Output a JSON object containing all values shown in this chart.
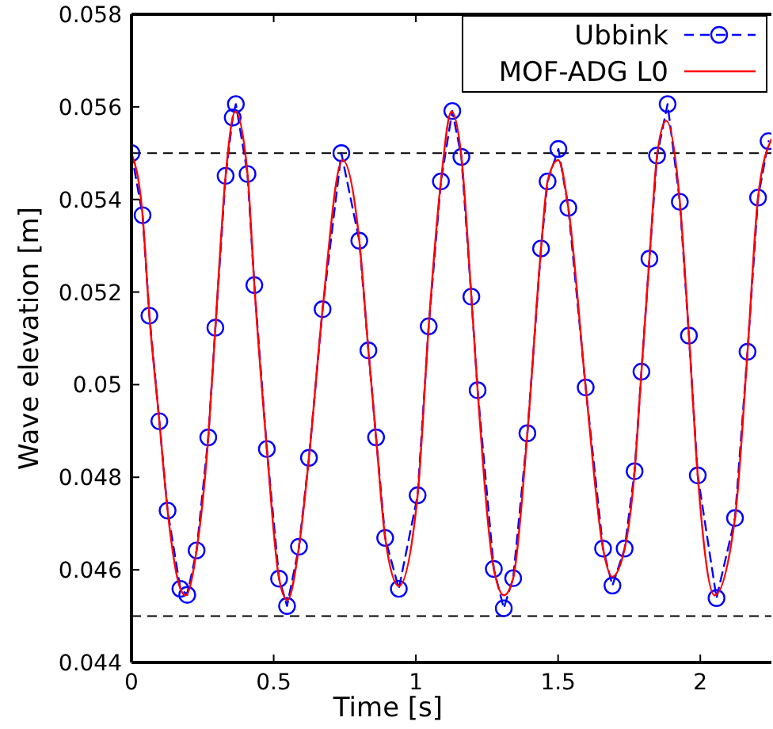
{
  "chart_data": {
    "type": "line",
    "xlabel": "Time [s]",
    "ylabel": "Wave elevation [m]",
    "xlim": [
      0,
      2.25
    ],
    "xticks": [
      0,
      0.5,
      1,
      1.5,
      2
    ],
    "ylim": [
      0.044,
      0.058
    ],
    "yticks": [
      0.044,
      0.046,
      0.048,
      0.05,
      0.052,
      0.054,
      0.056,
      0.058
    ],
    "grid": false,
    "legend": "top right",
    "ref_lines": [
      {
        "axis": "y",
        "value": 0.055,
        "color": "#000000",
        "line_style": "dashed"
      },
      {
        "axis": "y",
        "value": 0.045,
        "color": "#000000",
        "line_style": "dashed"
      }
    ],
    "series": [
      {
        "name": "Ubbink",
        "color": "#0000ff",
        "marker": "circle",
        "line_style": "dashed",
        "x": [
          0,
          0.039,
          0.063,
          0.098,
          0.127,
          0.172,
          0.196,
          0.229,
          0.27,
          0.295,
          0.331,
          0.356,
          0.367,
          0.408,
          0.432,
          0.476,
          0.519,
          0.547,
          0.589,
          0.624,
          0.672,
          0.738,
          0.801,
          0.833,
          0.86,
          0.892,
          0.94,
          1.006,
          1.045,
          1.088,
          1.128,
          1.16,
          1.195,
          1.217,
          1.274,
          1.309,
          1.342,
          1.392,
          1.44,
          1.463,
          1.501,
          1.536,
          1.597,
          1.658,
          1.691,
          1.734,
          1.769,
          1.793,
          1.821,
          1.848,
          1.885,
          1.928,
          1.96,
          1.991,
          2.057,
          2.122,
          2.166,
          2.203,
          2.24
        ],
        "values": [
          0.055,
          0.05366,
          0.05149,
          0.04921,
          0.04728,
          0.04559,
          0.04546,
          0.04642,
          0.04886,
          0.05123,
          0.05451,
          0.05577,
          0.05606,
          0.05455,
          0.05215,
          0.04861,
          0.04581,
          0.04522,
          0.0465,
          0.04842,
          0.05163,
          0.055,
          0.05311,
          0.05074,
          0.04886,
          0.04669,
          0.04559,
          0.04761,
          0.05126,
          0.05439,
          0.05591,
          0.05492,
          0.0519,
          0.04988,
          0.04602,
          0.04517,
          0.04582,
          0.04895,
          0.05294,
          0.05439,
          0.05509,
          0.05382,
          0.04994,
          0.04646,
          0.04566,
          0.04646,
          0.04813,
          0.05028,
          0.05272,
          0.05495,
          0.05606,
          0.05395,
          0.05106,
          0.04804,
          0.04539,
          0.04712,
          0.05071,
          0.05404,
          0.05526
        ]
      },
      {
        "name": "MOF-ADG L0",
        "color": "#ff0000",
        "marker": "none",
        "line_style": "solid",
        "x": [
          0,
          0.039,
          0.063,
          0.098,
          0.127,
          0.172,
          0.19,
          0.229,
          0.27,
          0.295,
          0.331,
          0.365,
          0.408,
          0.432,
          0.476,
          0.519,
          0.548,
          0.589,
          0.624,
          0.672,
          0.742,
          0.801,
          0.833,
          0.86,
          0.892,
          0.94,
          1.006,
          1.045,
          1.088,
          1.125,
          1.16,
          1.195,
          1.217,
          1.274,
          1.31,
          1.342,
          1.392,
          1.44,
          1.463,
          1.5,
          1.536,
          1.597,
          1.658,
          1.69,
          1.734,
          1.769,
          1.793,
          1.821,
          1.848,
          1.88,
          1.928,
          1.96,
          1.991,
          2.05,
          2.122,
          2.166,
          2.203,
          2.25
        ],
        "values": [
          0.055,
          0.05366,
          0.05149,
          0.04921,
          0.04728,
          0.04559,
          0.04545,
          0.04642,
          0.04886,
          0.05123,
          0.05451,
          0.0559,
          0.05455,
          0.05215,
          0.04861,
          0.04581,
          0.04535,
          0.0465,
          0.04842,
          0.05163,
          0.05485,
          0.05311,
          0.05074,
          0.04886,
          0.04669,
          0.04565,
          0.04761,
          0.05126,
          0.05439,
          0.0559,
          0.05492,
          0.0519,
          0.04988,
          0.04602,
          0.04545,
          0.04582,
          0.04895,
          0.05294,
          0.05439,
          0.05485,
          0.05382,
          0.04994,
          0.04646,
          0.04585,
          0.04646,
          0.04813,
          0.05028,
          0.05272,
          0.05495,
          0.0557,
          0.05395,
          0.05106,
          0.04804,
          0.04545,
          0.04712,
          0.05071,
          0.05404,
          0.0553
        ]
      }
    ]
  }
}
